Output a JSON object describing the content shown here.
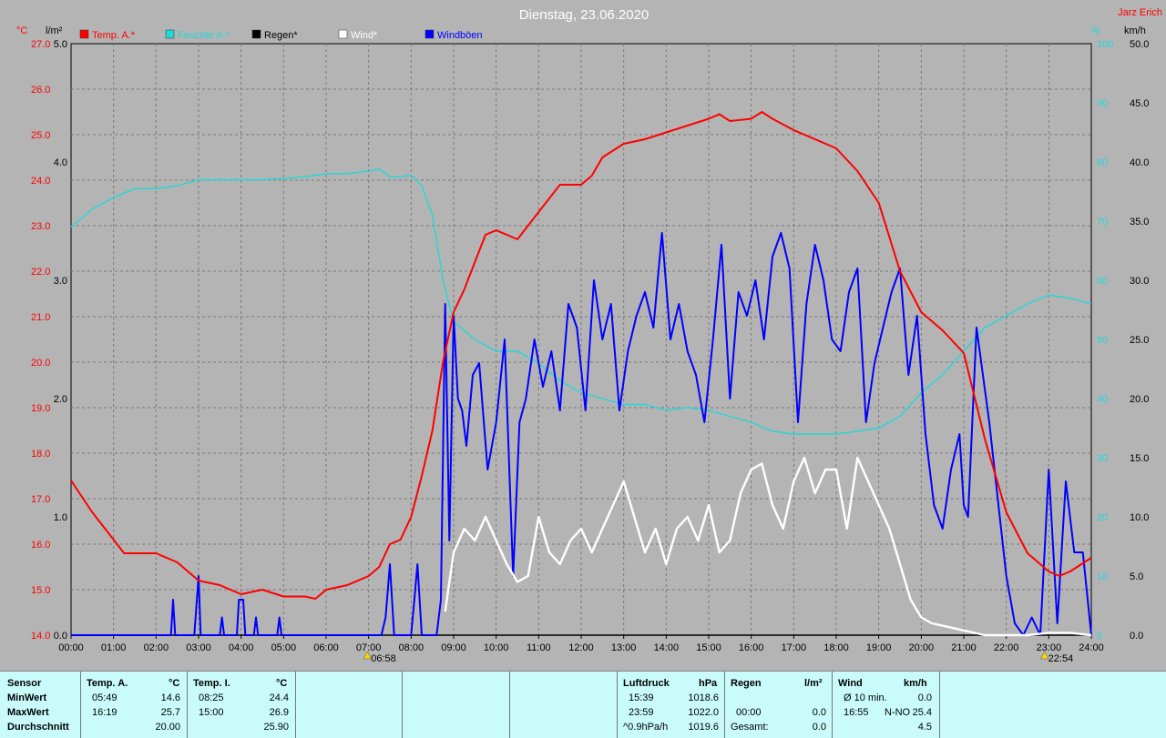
{
  "title": "Dienstag, 23.06.2020",
  "author": "Jarz Erich",
  "units": {
    "temp": "°C",
    "rain": "l/m²",
    "humidity": "%",
    "wind": "km/h"
  },
  "legend": [
    {
      "label": "Temp. A.*",
      "color": "#ff0000"
    },
    {
      "label": "Feuchte A.*",
      "color": "#22d8d8"
    },
    {
      "label": "Regen*",
      "color": "#000000"
    },
    {
      "label": "Wind*",
      "color": "#ffffff"
    },
    {
      "label": "Windböen",
      "color": "#0000ff"
    }
  ],
  "sun_markers": [
    {
      "label": "06:58"
    },
    {
      "label": "22:54"
    }
  ],
  "chart_data": {
    "type": "line",
    "x_unit": "hours",
    "xlim": [
      0,
      24
    ],
    "x_ticks": [
      "00:00",
      "01:00",
      "02:00",
      "03:00",
      "04:00",
      "05:00",
      "06:00",
      "07:00",
      "08:00",
      "09:00",
      "10:00",
      "11:00",
      "12:00",
      "13:00",
      "14:00",
      "15:00",
      "16:00",
      "17:00",
      "18:00",
      "19:00",
      "20:00",
      "21:00",
      "22:00",
      "23:00",
      "24:00"
    ],
    "axes": {
      "temp": {
        "range": [
          14,
          27
        ],
        "ticks": [
          "14.0",
          "15.0",
          "16.0",
          "17.0",
          "18.0",
          "19.0",
          "20.0",
          "21.0",
          "22.0",
          "23.0",
          "24.0",
          "25.0",
          "26.0",
          "27.0"
        ]
      },
      "rain": {
        "range": [
          0,
          5
        ],
        "ticks": [
          "0.0",
          "1.0",
          "2.0",
          "3.0",
          "4.0",
          "5.0"
        ]
      },
      "humidity": {
        "range": [
          0,
          100
        ],
        "ticks": [
          "0",
          "10",
          "20",
          "30",
          "40",
          "50",
          "60",
          "70",
          "80",
          "90",
          "100"
        ]
      },
      "wind": {
        "range": [
          0,
          50
        ],
        "ticks": [
          "0.0",
          "5.0",
          "10.0",
          "15.0",
          "20.0",
          "25.0",
          "30.0",
          "35.0",
          "40.0",
          "45.0",
          "50.0"
        ]
      }
    },
    "series": [
      {
        "name": "Temp. A.*",
        "axis": "temp",
        "color": "#ff0000",
        "x": [
          0,
          0.5,
          1,
          1.25,
          1.75,
          2,
          2.5,
          3,
          3.5,
          4,
          4.5,
          5,
          5.5,
          5.75,
          6,
          6.5,
          7,
          7.25,
          7.5,
          7.75,
          8,
          8.25,
          8.5,
          8.75,
          9,
          9.25,
          9.5,
          9.75,
          10,
          10.5,
          11,
          11.5,
          12,
          12.25,
          12.5,
          13,
          13.5,
          14,
          14.5,
          15,
          15.25,
          15.5,
          16,
          16.25,
          16.5,
          17,
          17.5,
          18,
          18.5,
          19,
          19.5,
          20,
          20.5,
          21,
          21.5,
          22,
          22.5,
          23,
          23.25,
          23.5,
          24
        ],
        "y": [
          17.4,
          16.7,
          16.1,
          15.8,
          15.8,
          15.8,
          15.6,
          15.2,
          15.1,
          14.9,
          15.0,
          14.85,
          14.85,
          14.8,
          15.0,
          15.1,
          15.3,
          15.5,
          16.0,
          16.1,
          16.6,
          17.5,
          18.5,
          20.0,
          21.1,
          21.6,
          22.2,
          22.8,
          22.9,
          22.7,
          23.3,
          23.9,
          23.9,
          24.1,
          24.5,
          24.8,
          24.9,
          25.05,
          25.2,
          25.35,
          25.45,
          25.3,
          25.35,
          25.5,
          25.35,
          25.1,
          24.9,
          24.7,
          24.2,
          23.5,
          22.0,
          21.1,
          20.7,
          20.2,
          18.3,
          16.7,
          15.8,
          15.4,
          15.3,
          15.4,
          15.7
        ]
      },
      {
        "name": "Feuchte A.*",
        "axis": "humidity",
        "color": "#22d8d8",
        "x": [
          0,
          0.5,
          1,
          1.5,
          2,
          2.5,
          3,
          3.5,
          4,
          4.5,
          5,
          5.5,
          6,
          6.5,
          7,
          7.25,
          7.5,
          7.75,
          8,
          8.25,
          8.5,
          8.75,
          9,
          9.5,
          10,
          10.5,
          11,
          11.5,
          12,
          12.5,
          13,
          13.5,
          14,
          14.5,
          15,
          15.5,
          16,
          16.5,
          17,
          17.5,
          18,
          18.5,
          19,
          19.5,
          20,
          20.5,
          21,
          21.5,
          22,
          22.5,
          23,
          23.5,
          24
        ],
        "y": [
          69,
          72,
          74,
          75.5,
          75.5,
          76,
          77,
          77,
          77,
          77,
          77.2,
          77.5,
          78,
          78,
          78.5,
          78.8,
          77.5,
          77.5,
          77.8,
          76,
          71,
          60,
          53,
          50,
          48,
          48,
          46,
          43,
          41,
          40,
          39,
          39,
          38,
          38.5,
          38,
          37,
          36,
          34.5,
          34,
          34,
          34,
          34.5,
          35,
          37,
          41,
          44,
          48,
          52,
          54,
          56,
          57.5,
          57,
          56
        ]
      },
      {
        "name": "Regen*",
        "axis": "rain",
        "color": "#000000",
        "x": [
          0,
          24
        ],
        "y": [
          0,
          0
        ]
      },
      {
        "name": "Wind*",
        "axis": "wind",
        "color": "#ffffff",
        "x": [
          8.8,
          9,
          9.25,
          9.5,
          9.75,
          10,
          10.25,
          10.5,
          10.75,
          11,
          11.25,
          11.5,
          11.75,
          12,
          12.25,
          12.5,
          12.75,
          13,
          13.25,
          13.5,
          13.75,
          14,
          14.25,
          14.5,
          14.75,
          15,
          15.25,
          15.5,
          15.75,
          16,
          16.25,
          16.5,
          16.75,
          17,
          17.25,
          17.5,
          17.75,
          18,
          18.25,
          18.5,
          18.75,
          19,
          19.25,
          19.5,
          19.75,
          20,
          20.25,
          20.5,
          20.75,
          21,
          21.25,
          21.5,
          22,
          22.5,
          23,
          23.5,
          24
        ],
        "y": [
          2,
          7,
          9,
          8,
          10,
          8,
          6,
          4.5,
          5,
          10,
          7,
          6,
          8,
          9,
          7,
          9,
          11,
          13,
          10,
          7,
          9,
          6,
          9,
          10,
          8,
          11,
          7,
          8,
          12,
          14,
          14.5,
          11,
          9,
          13,
          15,
          12,
          14,
          14,
          9,
          15,
          13,
          11,
          9,
          6,
          3,
          1.5,
          1,
          0.8,
          0.6,
          0.4,
          0.2,
          0,
          0,
          0,
          0.2,
          0.2,
          0
        ]
      },
      {
        "name": "Windböen",
        "axis": "wind",
        "color": "#0000ff",
        "x": [
          0,
          2.35,
          2.4,
          2.45,
          2.5,
          2.9,
          3.0,
          3.05,
          3.1,
          3.5,
          3.55,
          3.6,
          3.9,
          3.95,
          4.05,
          4.1,
          4.3,
          4.35,
          4.4,
          4.85,
          4.9,
          4.95,
          7.3,
          7.4,
          7.5,
          7.6,
          8.0,
          8.05,
          8.15,
          8.25,
          8.6,
          8.7,
          8.8,
          8.9,
          9.0,
          9.1,
          9.2,
          9.3,
          9.45,
          9.6,
          9.8,
          10.0,
          10.2,
          10.4,
          10.55,
          10.7,
          10.9,
          11.1,
          11.3,
          11.5,
          11.7,
          11.9,
          12.1,
          12.3,
          12.5,
          12.7,
          12.9,
          13.1,
          13.3,
          13.5,
          13.7,
          13.9,
          14.1,
          14.3,
          14.5,
          14.7,
          14.9,
          15.1,
          15.3,
          15.5,
          15.7,
          15.9,
          16.1,
          16.3,
          16.5,
          16.7,
          16.9,
          17.1,
          17.3,
          17.5,
          17.7,
          17.9,
          18.1,
          18.3,
          18.5,
          18.7,
          18.9,
          19.1,
          19.3,
          19.5,
          19.7,
          19.9,
          20.1,
          20.3,
          20.5,
          20.7,
          20.9,
          21.0,
          21.1,
          21.3,
          21.6,
          22.0,
          22.2,
          22.4,
          22.6,
          22.8,
          23.0,
          23.2,
          23.4,
          23.6,
          23.8,
          24
        ],
        "y": [
          0,
          0,
          3,
          0,
          0,
          0,
          5,
          0,
          0,
          0,
          1.5,
          0,
          0,
          3,
          3,
          0,
          0,
          1.5,
          0,
          0,
          1.5,
          0,
          0,
          1.5,
          6,
          0,
          0,
          2,
          6,
          0,
          0,
          3,
          28,
          8,
          27,
          20,
          19,
          16,
          22,
          23,
          14,
          18,
          25,
          5,
          18,
          20,
          25,
          21,
          24,
          19,
          28,
          26,
          19,
          30,
          25,
          28,
          19,
          24,
          27,
          29,
          26,
          34,
          25,
          28,
          24,
          22,
          18,
          25,
          33,
          20,
          29,
          27,
          30,
          25,
          32,
          34,
          31,
          18,
          28,
          33,
          30,
          25,
          24,
          29,
          31,
          18,
          23,
          26,
          29,
          31,
          22,
          27,
          17,
          11,
          9,
          14,
          17,
          11,
          10,
          26,
          18,
          5,
          1,
          0,
          1.5,
          0,
          14,
          1,
          13,
          7,
          7,
          0
        ]
      }
    ]
  },
  "panel": {
    "sensor": {
      "header": "Sensor",
      "min": "MinWert",
      "max": "MaxWert",
      "avg": "Durchschnitt"
    },
    "temp_a": {
      "header": "Temp. A.",
      "unit": "°C",
      "min_time": "05:49",
      "min_val": "14.6",
      "max_time": "16:19",
      "max_val": "25.7",
      "avg": "20.00"
    },
    "temp_i": {
      "header": "Temp. I.",
      "unit": "°C",
      "min_time": "08:25",
      "min_val": "24.4",
      "max_time": "15:00",
      "max_val": "26.9",
      "avg": "25.90"
    },
    "pressure": {
      "header": "Luftdruck",
      "unit": "hPa",
      "min_time": "15:39",
      "min_val": "1018.6",
      "max_time": "23:59",
      "max_val": "1022.0",
      "avg_label": "^0.9hPa/h",
      "avg": "1019.6"
    },
    "rain": {
      "header": "Regen",
      "unit": "l/m²",
      "time": "00:00",
      "val1": "0.0",
      "total_label": "Gesamt:",
      "total": "0.0"
    },
    "wind": {
      "header": "Wind",
      "unit": "km/h",
      "avg_label": "Ø 10 min.",
      "avg_val": "0.0",
      "max_time": "16:55",
      "max_dir": "N-NO",
      "max_val": "25.4",
      "mean": "4.5"
    }
  }
}
